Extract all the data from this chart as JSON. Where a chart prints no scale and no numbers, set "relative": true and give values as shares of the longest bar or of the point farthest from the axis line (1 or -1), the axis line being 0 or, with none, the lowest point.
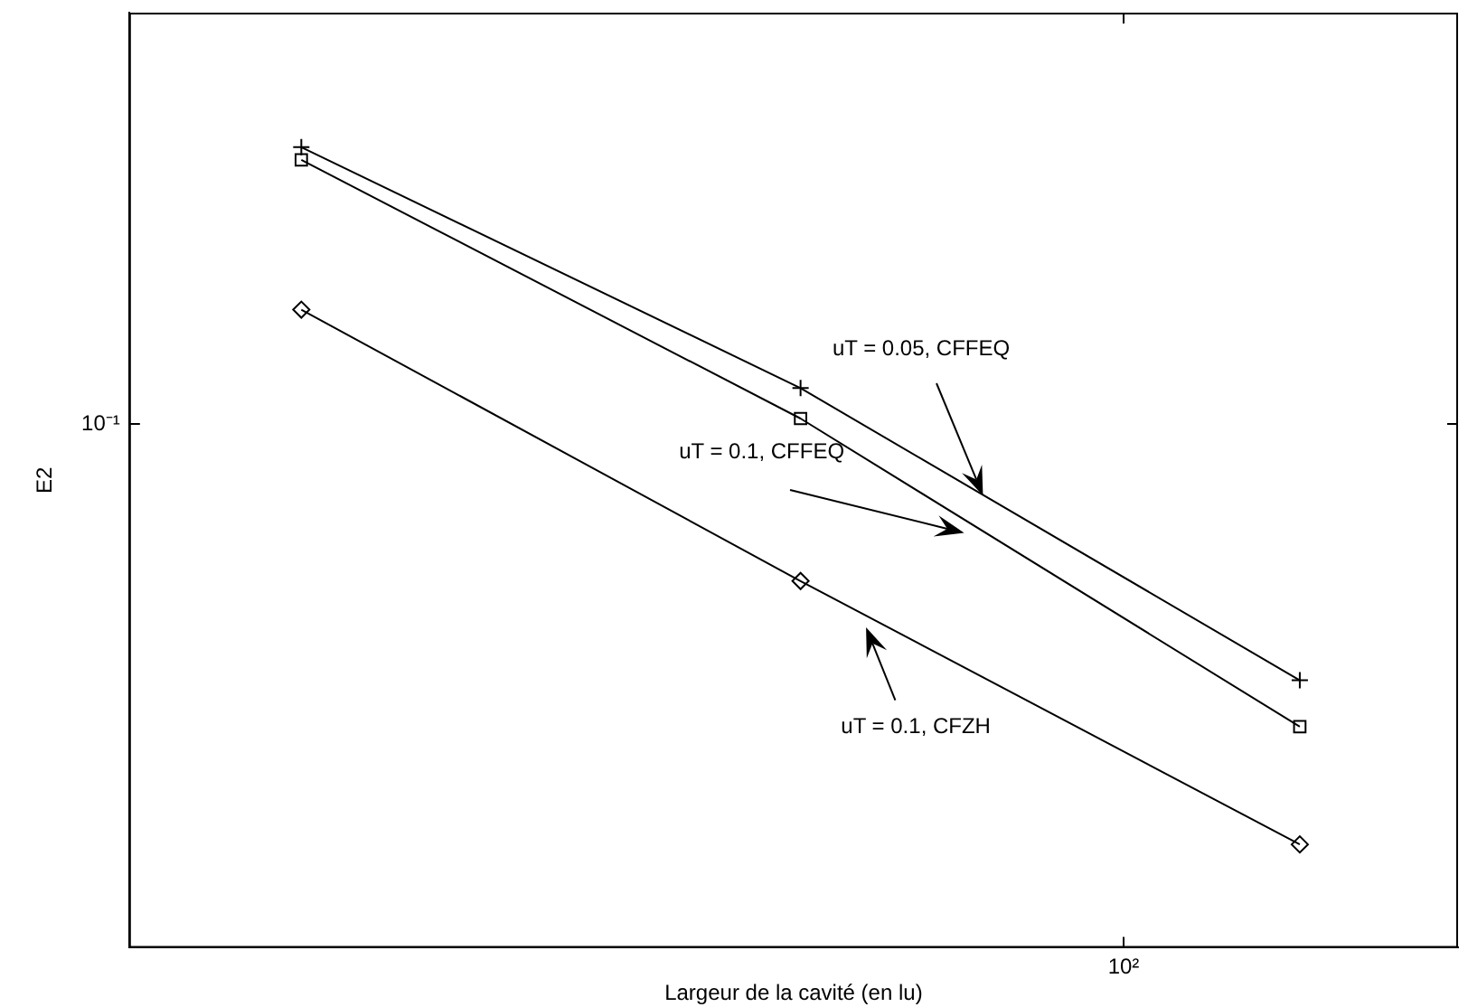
{
  "chart_data": {
    "type": "line",
    "relative": true,
    "xlabel": "Largeur de la cavité (en lu)",
    "ylabel": "E2",
    "grid": false,
    "legend": false,
    "line_style": "solid",
    "categories": [
      null,
      null,
      null
    ],
    "series": [
      {
        "color": "#000000",
        "marker": "cross",
        "values": [
          1,
          0.699,
          0.334
        ]
      },
      {
        "color": "#000000",
        "marker": "square",
        "values": [
          0.984,
          0.661,
          0.276
        ]
      },
      {
        "color": "#000000",
        "marker": "diamond",
        "values": [
          0.797,
          0.458,
          0.129
        ]
      }
    ],
    "annotations": [
      "uT = 0.05, CFFEQ",
      "uT = 0.1, CFFEQ",
      "uT = 0.1, CFZH",
      "10²",
      "10⁻¹"
    ]
  }
}
